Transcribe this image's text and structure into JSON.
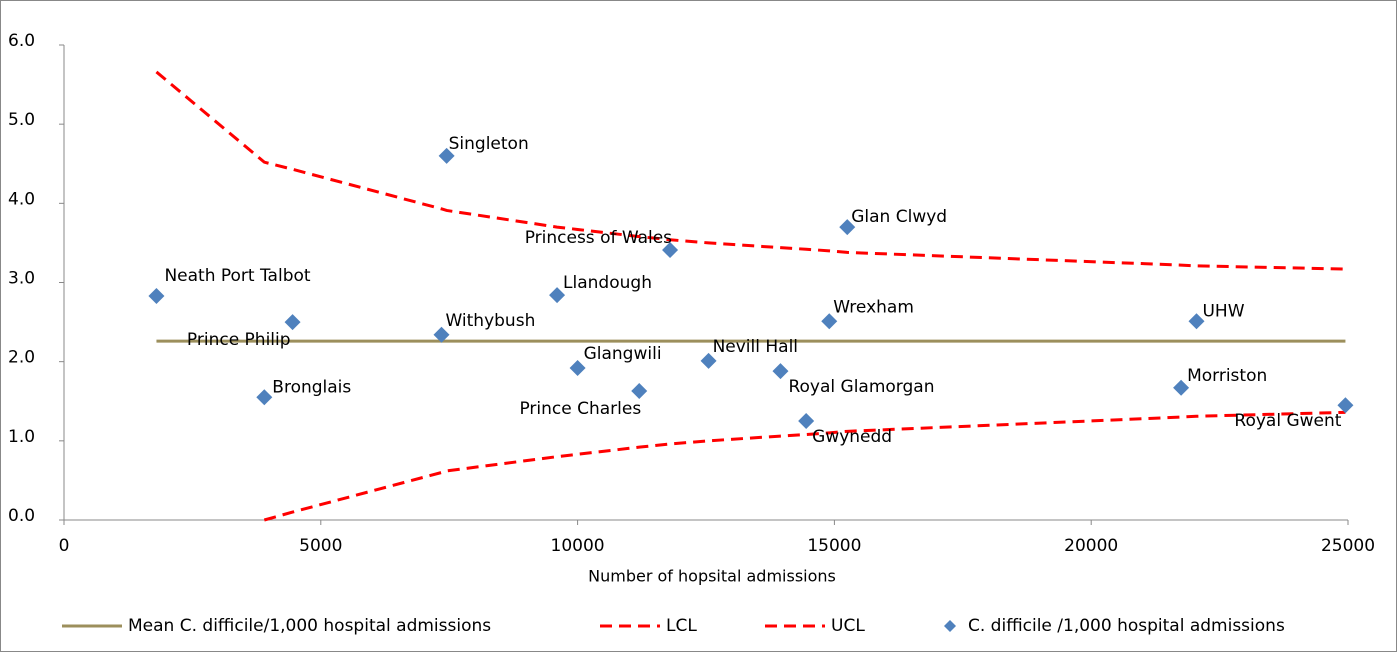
{
  "chart_data": {
    "type": "scatter",
    "x_label": "Number of hopsital admissions",
    "xlim": [
      0,
      25000
    ],
    "xticks": [
      0,
      5000,
      10000,
      15000,
      20000,
      25000
    ],
    "ylim": [
      0,
      6
    ],
    "yticks": [
      {
        "value": 0,
        "label": "0.0"
      },
      {
        "value": 1,
        "label": "1.0"
      },
      {
        "value": 2,
        "label": "2.0"
      },
      {
        "value": 3,
        "label": "3.0"
      },
      {
        "value": 4,
        "label": "4.0"
      },
      {
        "value": 5,
        "label": "5.0"
      },
      {
        "value": 6,
        "label": "6.0"
      }
    ],
    "grid": false,
    "legend": "bottom",
    "series": [
      {
        "name": "Mean C. difficile/1,000 hospital admissions",
        "kind": "line",
        "dash": false,
        "color": "#9c8f5c",
        "x": [
          1800,
          24950
        ],
        "values": [
          2.26,
          2.26
        ]
      },
      {
        "name": "LCL",
        "kind": "line",
        "dash": true,
        "color": "#ff0000",
        "x": [
          3900,
          4450,
          7350,
          7450,
          9600,
          10000,
          11200,
          11800,
          12550,
          13950,
          14450,
          14900,
          15250,
          21750,
          22050,
          24950
        ],
        "values": [
          0.0,
          0.1,
          0.6,
          0.62,
          0.8,
          0.83,
          0.92,
          0.96,
          1.0,
          1.06,
          1.08,
          1.1,
          1.12,
          1.3,
          1.31,
          1.36
        ]
      },
      {
        "name": "UCL",
        "kind": "line",
        "dash": true,
        "color": "#ff0000",
        "x": [
          1800,
          3900,
          4450,
          7350,
          7450,
          9600,
          10000,
          11200,
          11800,
          12550,
          13950,
          14450,
          14900,
          15250,
          21750,
          22050,
          24950
        ],
        "values": [
          5.66,
          4.52,
          4.43,
          3.93,
          3.91,
          3.7,
          3.67,
          3.58,
          3.54,
          3.5,
          3.44,
          3.42,
          3.4,
          3.38,
          3.22,
          3.21,
          3.17
        ]
      },
      {
        "name": "C. difficile /1,000 hospital admissions",
        "kind": "points",
        "color": "#4f81bd",
        "labels": [
          "Neath Port Talbot",
          "Prince Philip",
          "Bronglais",
          "Withybush",
          "Singleton",
          "Llandough",
          "Glangwili",
          "Prince Charles",
          "Princess of Wales",
          "Nevill Hall",
          "Royal Glamorgan",
          "Gwynedd",
          "Wrexham",
          "Glan Clwyd",
          "Morriston",
          "UHW",
          "Royal Gwent"
        ],
        "x": [
          1800,
          4450,
          3900,
          7350,
          7450,
          9600,
          10000,
          11200,
          11800,
          12550,
          13950,
          14450,
          14900,
          15250,
          21750,
          22050,
          24950
        ],
        "values": [
          2.83,
          2.5,
          1.55,
          2.34,
          4.6,
          2.84,
          1.92,
          1.63,
          3.41,
          2.01,
          1.88,
          1.25,
          2.51,
          3.7,
          1.67,
          2.51,
          1.45
        ]
      }
    ]
  }
}
